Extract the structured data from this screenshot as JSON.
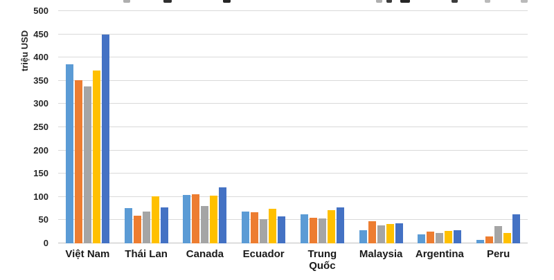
{
  "page": {
    "background": "#ffffff"
  },
  "cropped_title_fragments": [
    {
      "x": 178,
      "w": 10,
      "opacity": 0.35
    },
    {
      "x": 236,
      "w": 12,
      "opacity": 0.9
    },
    {
      "x": 322,
      "w": 11,
      "opacity": 0.95
    },
    {
      "x": 543,
      "w": 9,
      "opacity": 0.35
    },
    {
      "x": 558,
      "w": 8,
      "opacity": 0.85
    },
    {
      "x": 578,
      "w": 14,
      "opacity": 0.95
    },
    {
      "x": 652,
      "w": 9,
      "opacity": 0.85
    },
    {
      "x": 700,
      "w": 8,
      "opacity": 0.3
    },
    {
      "x": 752,
      "w": 10,
      "opacity": 0.3
    }
  ],
  "chart_data": {
    "type": "bar",
    "ylabel": "triệu USD",
    "ylim": [
      0,
      500
    ],
    "y_ticks": [
      0,
      50,
      100,
      150,
      200,
      250,
      300,
      350,
      400,
      450,
      500
    ],
    "grid": true,
    "legend": "none",
    "categories": [
      "Việt Nam",
      "Thái Lan",
      "Canada",
      "Ecuador",
      "Trung Quốc",
      "Malaysia",
      "Argentina",
      "Peru"
    ],
    "series": [
      {
        "name": "series-1-blue",
        "color": "#5B9BD5",
        "values": [
          385,
          76,
          104,
          68,
          63,
          29,
          20,
          7
        ]
      },
      {
        "name": "series-2-orange",
        "color": "#ED7D31",
        "values": [
          351,
          60,
          105,
          67,
          55,
          48,
          25,
          15
        ]
      },
      {
        "name": "series-3-gray",
        "color": "#A5A5A5",
        "values": [
          338,
          68,
          80,
          52,
          54,
          38,
          22,
          37
        ]
      },
      {
        "name": "series-4-yellow",
        "color": "#FFC000",
        "values": [
          372,
          101,
          102,
          75,
          71,
          42,
          27,
          22
        ]
      },
      {
        "name": "series-5-dark-blue",
        "color": "#4472C4",
        "values": [
          449,
          77,
          120,
          58,
          77,
          43,
          29,
          62
        ]
      }
    ],
    "colors": {
      "gridline": "#d9d9d9",
      "baseline": "#bfbfbf",
      "text": "#262626"
    }
  }
}
